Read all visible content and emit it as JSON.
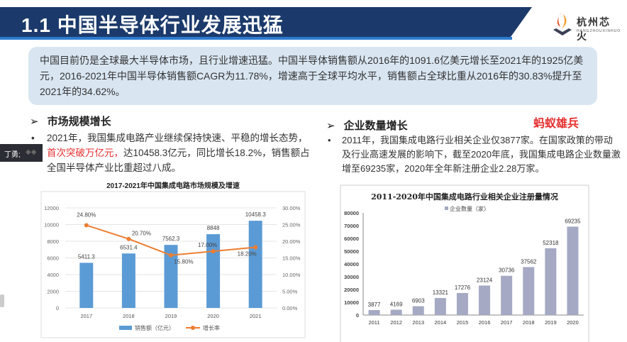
{
  "header": {
    "title": "1.1 中国半导体行业发展迅猛"
  },
  "logo": {
    "name": "杭州芯火",
    "sub": "HANGZHOUXINHUO"
  },
  "summary": "中国目前仍是全球最大半导体市场，且行业增速迅猛。中国半导体销售额从2016年的1091.6亿美元增长至2021年的1925亿美元，2016-2021年中国半导体销售额CAGR为11.78%，增速高于全球平均水平，销售额占全球比重从2016年的30.83%提升至2021年的34.62%。",
  "left": {
    "heading": "市场规模增长",
    "p1": "2021年，我国集成电路产业继续保持快速、平稳的增长态势，",
    "p_red": "首次突破万亿元，",
    "p2": "达10458.3亿元，同比增长18.2%，销售额占全国半导体产业比重超过八成。"
  },
  "right": {
    "heading": "企业数量增长",
    "text": "2011年，我国集成电路行业相关企业仅3877家。在国家政策的带动及行业高速发展的影响下，截至2020年底，我国集成电路企业数量激增至69235家，2020年全年新注册企业2.28万家。"
  },
  "brand": "蚂蚁雄兵",
  "overlay": {
    "user": "丁勇;"
  },
  "colors": {
    "header": "#1b3a6b",
    "bar_blue": "#5b9bd5",
    "line_orange": "#ed7d31",
    "bar_gray": "#a5a9c3"
  },
  "chart_data": [
    {
      "type": "bar",
      "title": "2017-2021年中国集成电路市场规模及增速",
      "categories": [
        "2017",
        "2018",
        "2019",
        "2020",
        "2021"
      ],
      "series": [
        {
          "name": "销售额（亿元）",
          "type": "bar",
          "values": [
            5411.3,
            6531.4,
            7562.3,
            8848,
            10458.3
          ],
          "labels": [
            "5411.3",
            "6531.4",
            "7562.3",
            "8848",
            "10458.3"
          ]
        },
        {
          "name": "增长率",
          "type": "line",
          "values": [
            24.8,
            20.7,
            15.8,
            17.0,
            18.2
          ],
          "labels": [
            "24.80%",
            "20.70%",
            "15.80%",
            "17.00%",
            "18.20%"
          ]
        }
      ],
      "ylim": [
        0,
        12000
      ],
      "yticks": [
        "0",
        "2000",
        "4000",
        "6000",
        "8000",
        "10000",
        "12000"
      ],
      "y2lim": [
        0,
        30
      ],
      "y2ticks": [
        "0.00%",
        "5.00%",
        "10.00%",
        "15.00%",
        "20.00%",
        "25.00%",
        "30.00%"
      ],
      "legend": "bottom"
    },
    {
      "type": "bar",
      "title": "2011-2020年中国集成电路行业相关企业注册量情况",
      "categories": [
        "2011",
        "2012",
        "2013",
        "2014",
        "2015",
        "2016",
        "2017",
        "2018",
        "2019",
        "2020"
      ],
      "series": [
        {
          "name": "企业数量（家）",
          "values": [
            3877,
            4169,
            6903,
            13321,
            17276,
            23124,
            30736,
            37562,
            52318,
            69235
          ]
        }
      ],
      "ylim": [
        0,
        80000
      ],
      "yticks": [
        "0",
        "10000",
        "20000",
        "30000",
        "40000",
        "50000",
        "60000",
        "70000",
        "80000"
      ],
      "legend": "top"
    }
  ]
}
